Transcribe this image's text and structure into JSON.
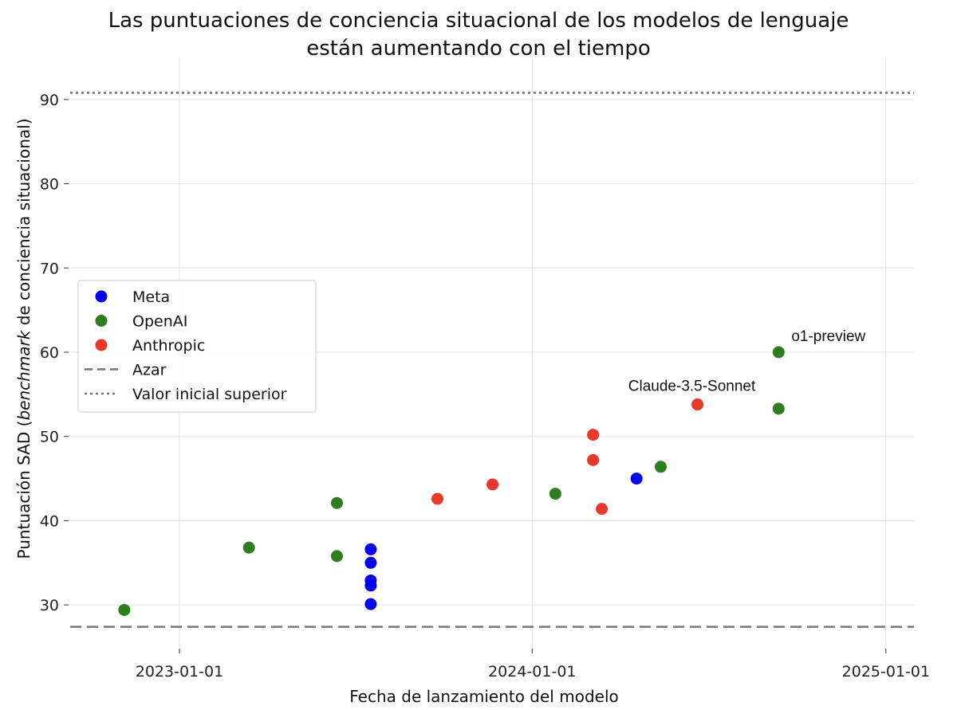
{
  "chart_data": {
    "type": "scatter",
    "title_lines": [
      "Las puntuaciones de conciencia situacional de los modelos de lenguaje",
      "están aumentando con el tiempo"
    ],
    "xlabel": "Fecha de lanzamiento del modelo",
    "ylabel_prefix": "Puntuación SAD (",
    "ylabel_italic": "benchmark",
    "ylabel_suffix": " de conciencia situacional)",
    "x_ticks": [
      "2023-01-01",
      "2024-01-01",
      "2025-01-01"
    ],
    "y_ticks": [
      30,
      40,
      50,
      60,
      70,
      80,
      90
    ],
    "xlim": [
      "2022-09-10",
      "2025-01-30"
    ],
    "ylim": [
      25,
      95
    ],
    "grid": true,
    "legend_position": "center-left",
    "series": [
      {
        "name": "Meta",
        "color": "#0000ee",
        "points": [
          {
            "x": "2023-07-18",
            "y": 36.6
          },
          {
            "x": "2023-07-18",
            "y": 35.0
          },
          {
            "x": "2023-07-18",
            "y": 32.9
          },
          {
            "x": "2023-07-18",
            "y": 32.3
          },
          {
            "x": "2023-07-18",
            "y": 30.1
          },
          {
            "x": "2024-04-18",
            "y": 45.0
          }
        ]
      },
      {
        "name": "OpenAI",
        "color": "#2e7d1e",
        "points": [
          {
            "x": "2022-11-05",
            "y": 29.4
          },
          {
            "x": "2023-03-14",
            "y": 36.8
          },
          {
            "x": "2023-06-13",
            "y": 35.8
          },
          {
            "x": "2023-06-13",
            "y": 42.1
          },
          {
            "x": "2024-01-25",
            "y": 43.2
          },
          {
            "x": "2024-05-13",
            "y": 46.4
          },
          {
            "x": "2024-09-12",
            "y": 60.0
          },
          {
            "x": "2024-09-12",
            "y": 53.3
          }
        ]
      },
      {
        "name": "Anthropic",
        "color": "#e8392a",
        "points": [
          {
            "x": "2023-09-25",
            "y": 42.6
          },
          {
            "x": "2023-11-21",
            "y": 44.3
          },
          {
            "x": "2024-03-04",
            "y": 50.2
          },
          {
            "x": "2024-03-04",
            "y": 47.2
          },
          {
            "x": "2024-03-13",
            "y": 41.4
          },
          {
            "x": "2024-06-20",
            "y": 53.8
          }
        ]
      }
    ],
    "reference_lines": [
      {
        "name": "Azar",
        "y": 27.4,
        "style": "dashed",
        "color": "#777777"
      },
      {
        "name": "Valor inicial superior",
        "y": 90.8,
        "style": "dotted",
        "color": "#777777"
      }
    ],
    "annotations": [
      {
        "text": "Claude-3.5-Sonnet",
        "x": "2024-06-20",
        "y": 53.8,
        "anchor": "above-left"
      },
      {
        "text": "o1-preview",
        "x": "2024-09-12",
        "y": 60.0,
        "anchor": "above-right"
      }
    ]
  }
}
